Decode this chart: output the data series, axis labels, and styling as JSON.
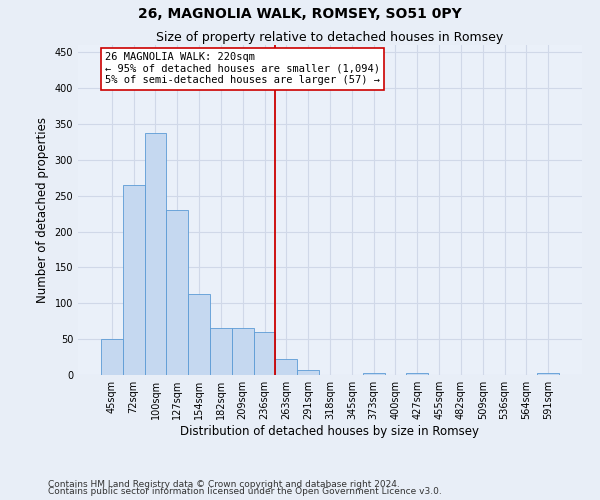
{
  "title": "26, MAGNOLIA WALK, ROMSEY, SO51 0PY",
  "subtitle": "Size of property relative to detached houses in Romsey",
  "xlabel": "Distribution of detached houses by size in Romsey",
  "ylabel": "Number of detached properties",
  "categories": [
    "45sqm",
    "72sqm",
    "100sqm",
    "127sqm",
    "154sqm",
    "182sqm",
    "209sqm",
    "236sqm",
    "263sqm",
    "291sqm",
    "318sqm",
    "345sqm",
    "373sqm",
    "400sqm",
    "427sqm",
    "455sqm",
    "482sqm",
    "509sqm",
    "536sqm",
    "564sqm",
    "591sqm"
  ],
  "values": [
    50,
    265,
    338,
    230,
    113,
    65,
    65,
    60,
    23,
    7,
    0,
    0,
    3,
    0,
    3,
    0,
    0,
    0,
    0,
    0,
    3
  ],
  "bar_color": "#c5d8f0",
  "bar_edgecolor": "#5b9bd5",
  "bar_width": 1.0,
  "ylim": [
    0,
    460
  ],
  "yticks": [
    0,
    50,
    100,
    150,
    200,
    250,
    300,
    350,
    400,
    450
  ],
  "vline_x": 7.5,
  "vline_color": "#cc0000",
  "annotation_text": "26 MAGNOLIA WALK: 220sqm\n← 95% of detached houses are smaller (1,094)\n5% of semi-detached houses are larger (57) →",
  "annotation_box_color": "#ffffff",
  "annotation_box_edgecolor": "#cc0000",
  "footer1": "Contains HM Land Registry data © Crown copyright and database right 2024.",
  "footer2": "Contains public sector information licensed under the Open Government Licence v3.0.",
  "background_color": "#e8eef7",
  "plot_background_color": "#eaf0f9",
  "grid_color": "#d0d8e8",
  "title_fontsize": 10,
  "subtitle_fontsize": 9,
  "axis_label_fontsize": 8.5,
  "tick_fontsize": 7,
  "footer_fontsize": 6.5,
  "annotation_fontsize": 7.5
}
